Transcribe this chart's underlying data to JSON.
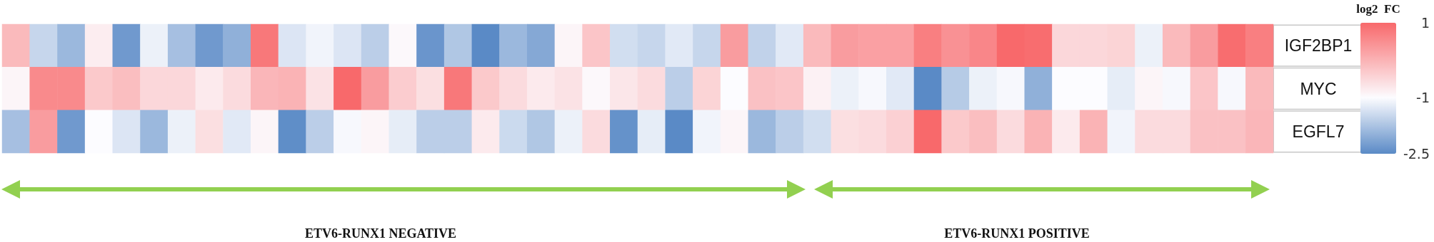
{
  "chart_data": {
    "type": "heatmap",
    "categories": [
      null,
      null,
      null,
      null,
      null,
      null,
      null,
      null,
      null,
      null,
      null,
      null,
      null,
      null,
      null,
      null,
      null,
      null,
      null,
      null,
      null,
      null,
      null,
      null,
      null,
      null,
      null,
      null,
      null,
      null,
      null,
      null,
      null,
      null,
      null,
      null,
      null,
      null,
      null,
      null,
      null,
      null,
      null,
      null,
      null,
      null
    ],
    "y_categories": [
      "IGF2BP1",
      "MYC",
      "EGFL7"
    ],
    "cells": [
      [
        -0.1,
        -1.5,
        -1.9,
        -0.8,
        -2.3,
        -1.15,
        -1.8,
        -2.3,
        -2.0,
        0.8,
        -1.3,
        -1.1,
        -1.3,
        -1.6,
        -0.95,
        -2.35,
        -1.7,
        -2.5,
        -1.9,
        -2.1,
        -0.9,
        -0.25,
        -1.4,
        -1.5,
        -1.25,
        -1.5,
        0.3,
        -1.55,
        -1.25,
        -0.1,
        0.3,
        0.25,
        0.25,
        0.7,
        0.45,
        0.6,
        1,
        0.95,
        -0.5,
        -0.5,
        -0.45,
        -1.15,
        -0.1,
        0.3,
        0.95,
        0.7
      ],
      [
        -0.9,
        0.55,
        0.55,
        -0.3,
        -0.15,
        -0.5,
        -0.5,
        -0.75,
        -0.55,
        -0.05,
        0,
        -0.65,
        1,
        0.3,
        -0.35,
        -0.6,
        0.8,
        -0.3,
        -0.55,
        -0.75,
        -0.65,
        -0.95,
        -0.7,
        -0.55,
        -1.6,
        -0.45,
        -1,
        -0.2,
        -0.25,
        -0.85,
        -1.15,
        -1.05,
        -1.25,
        -2.5,
        -1.65,
        -1.15,
        -1.05,
        -2.0,
        -1,
        -1,
        -1.2,
        -0.9,
        -1.05,
        -0.25,
        -1.05,
        -0.1
      ],
      [
        -1.8,
        0.3,
        -2.3,
        -1,
        -1.3,
        -1.9,
        -1.15,
        -0.6,
        -1.25,
        -0.9,
        -2.45,
        -1.6,
        -1.05,
        -0.9,
        -1.2,
        -1.6,
        -1.6,
        -0.75,
        -1.45,
        -1.7,
        -1.15,
        -0.55,
        -2.4,
        -1.2,
        -2.5,
        -1.1,
        -0.9,
        -1.9,
        -1.6,
        -1.4,
        -0.6,
        -0.55,
        -0.4,
        1,
        -0.3,
        -0.15,
        -0.55,
        0,
        -0.75,
        0,
        -1.1,
        -0.55,
        -0.55,
        -0.2,
        -0.2,
        -0.05
      ]
    ],
    "clabel": "log2  FC",
    "clim": [
      -2.5,
      1
    ],
    "cticks": [
      1,
      -1,
      -2.5
    ],
    "colors": [
      "#5a8ac6",
      "#fcfcff",
      "#f8696b"
    ],
    "annotations": [
      "ETV6-RUNX1 NEGATIVE",
      "ETV6-RUNX1 POSITIVE"
    ]
  }
}
